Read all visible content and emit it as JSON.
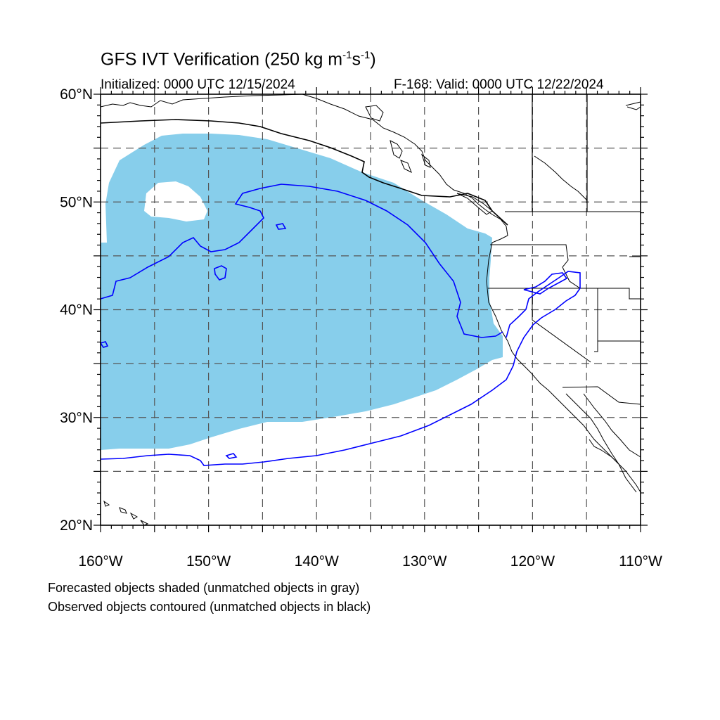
{
  "title": {
    "main": "GFS IVT Verification (250 kg m",
    "exp1": "-1",
    "mid": "s",
    "exp2": "-1",
    "end": ")"
  },
  "init_text": "Initialized: 0000 UTC 12/15/2024",
  "valid_text": "F-168: Valid: 0000 UTC 12/22/2024",
  "legend": {
    "forecast": "Forecasted objects shaded (unmatched objects in gray)",
    "observed": "Observed objects contoured (unmatched objects in black)"
  },
  "map": {
    "lon_range": [
      -160,
      -110
    ],
    "lat_range": [
      20,
      60
    ],
    "lat_ticks": [
      {
        "value": 60,
        "label": "60°N"
      },
      {
        "value": 50,
        "label": "50°N"
      },
      {
        "value": 40,
        "label": "40°N"
      },
      {
        "value": 30,
        "label": "30°N"
      },
      {
        "value": 20,
        "label": "20°N"
      }
    ],
    "lon_ticks": [
      {
        "value": -160,
        "label": "160°W"
      },
      {
        "value": -150,
        "label": "150°W"
      },
      {
        "value": -140,
        "label": "140°W"
      },
      {
        "value": -130,
        "label": "130°W"
      },
      {
        "value": -120,
        "label": "120°W"
      },
      {
        "value": -110,
        "label": "110°W"
      }
    ],
    "grid_lon": [
      -155,
      -150,
      -145,
      -140,
      -135,
      -130,
      -125,
      -120,
      -115
    ],
    "grid_lat": [
      55,
      50,
      45,
      40,
      35,
      30,
      25
    ],
    "colors": {
      "forecast_fill": "#87ceeb",
      "observed_matched": "#0000ff",
      "observed_unmatched": "#000000",
      "coast": "#000000",
      "grid": "#555555"
    }
  }
}
